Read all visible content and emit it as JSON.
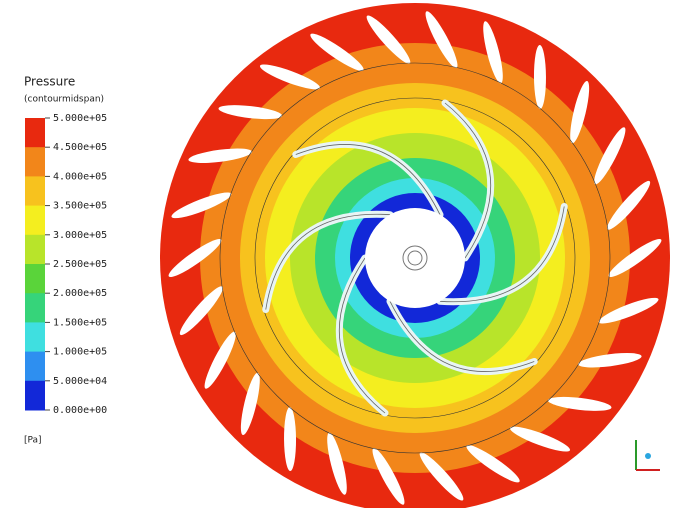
{
  "legend": {
    "title": "Pressure",
    "subtitle": "(contourmidspan)",
    "labels": [
      "5.000e+05",
      "4.500e+05",
      "4.000e+05",
      "3.500e+05",
      "3.000e+05",
      "2.500e+05",
      "2.000e+05",
      "1.500e+05",
      "1.000e+05",
      "5.000e+04",
      "0.000e+00"
    ],
    "colors": [
      "#e8290f",
      "#f2861a",
      "#f7c21e",
      "#f4ee1f",
      "#b8e42a",
      "#5ad43a",
      "#36d47a",
      "#3fdfe0",
      "#2e8ff0",
      "#1228d8"
    ],
    "unit": "[Pa]"
  }
}
